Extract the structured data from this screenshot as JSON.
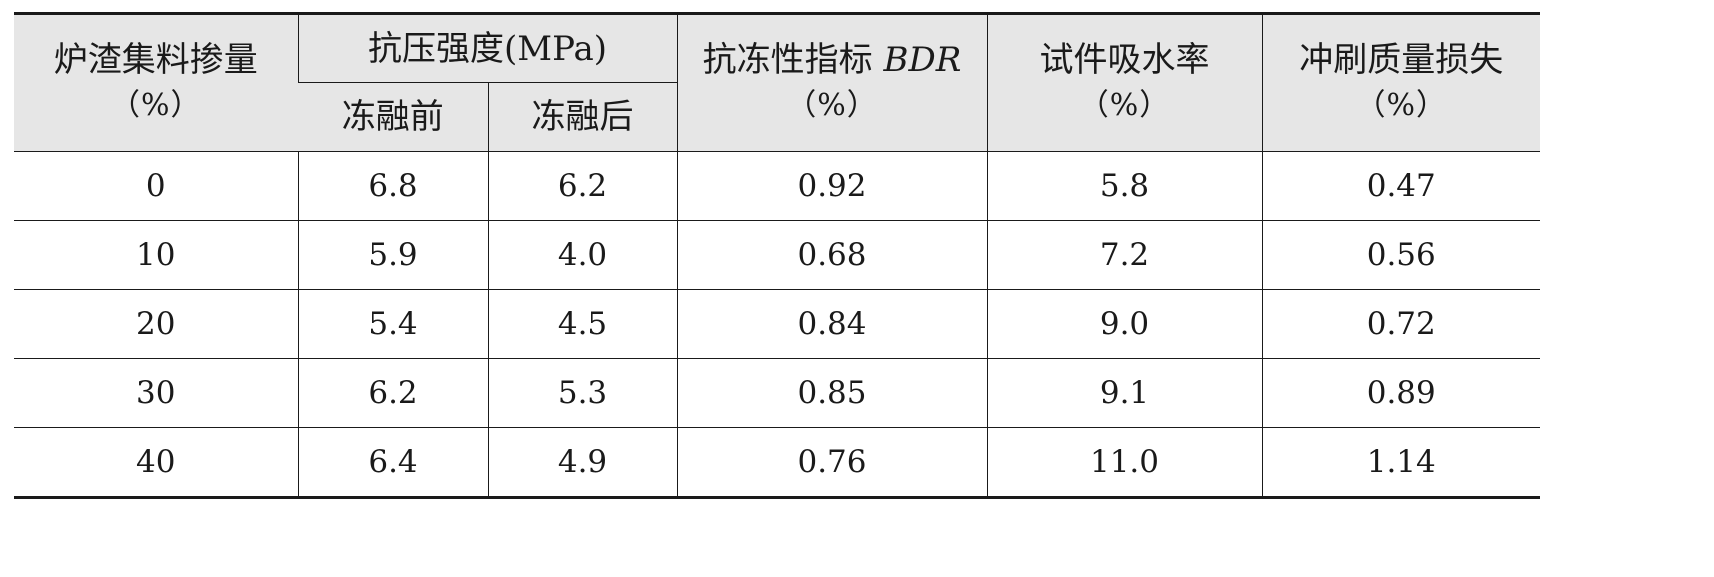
{
  "header": {
    "slag_content": "炉渣集料掺量",
    "slag_unit": "（%）",
    "compressive_strength": "抗压强度(MPa)",
    "before_freeze": "冻融前",
    "after_freeze": "冻融后",
    "frost_index_cn": "抗冻性指标 ",
    "frost_index_abbr": "BDR",
    "frost_unit": "（%）",
    "water_absorption": "试件吸水率",
    "water_unit": "（%）",
    "scour_loss": "冲刷质量损失",
    "scour_unit": "（%）"
  },
  "rows": [
    [
      "0",
      "6.8",
      "6.2",
      "0.92",
      "5.8",
      "0.47"
    ],
    [
      "10",
      "5.9",
      "4.0",
      "0.68",
      "7.2",
      "0.56"
    ],
    [
      "20",
      "5.4",
      "4.5",
      "0.84",
      "9.0",
      "0.72"
    ],
    [
      "30",
      "6.2",
      "5.3",
      "0.85",
      "9.1",
      "0.89"
    ],
    [
      "40",
      "6.4",
      "4.9",
      "0.76",
      "11.0",
      "1.14"
    ]
  ]
}
